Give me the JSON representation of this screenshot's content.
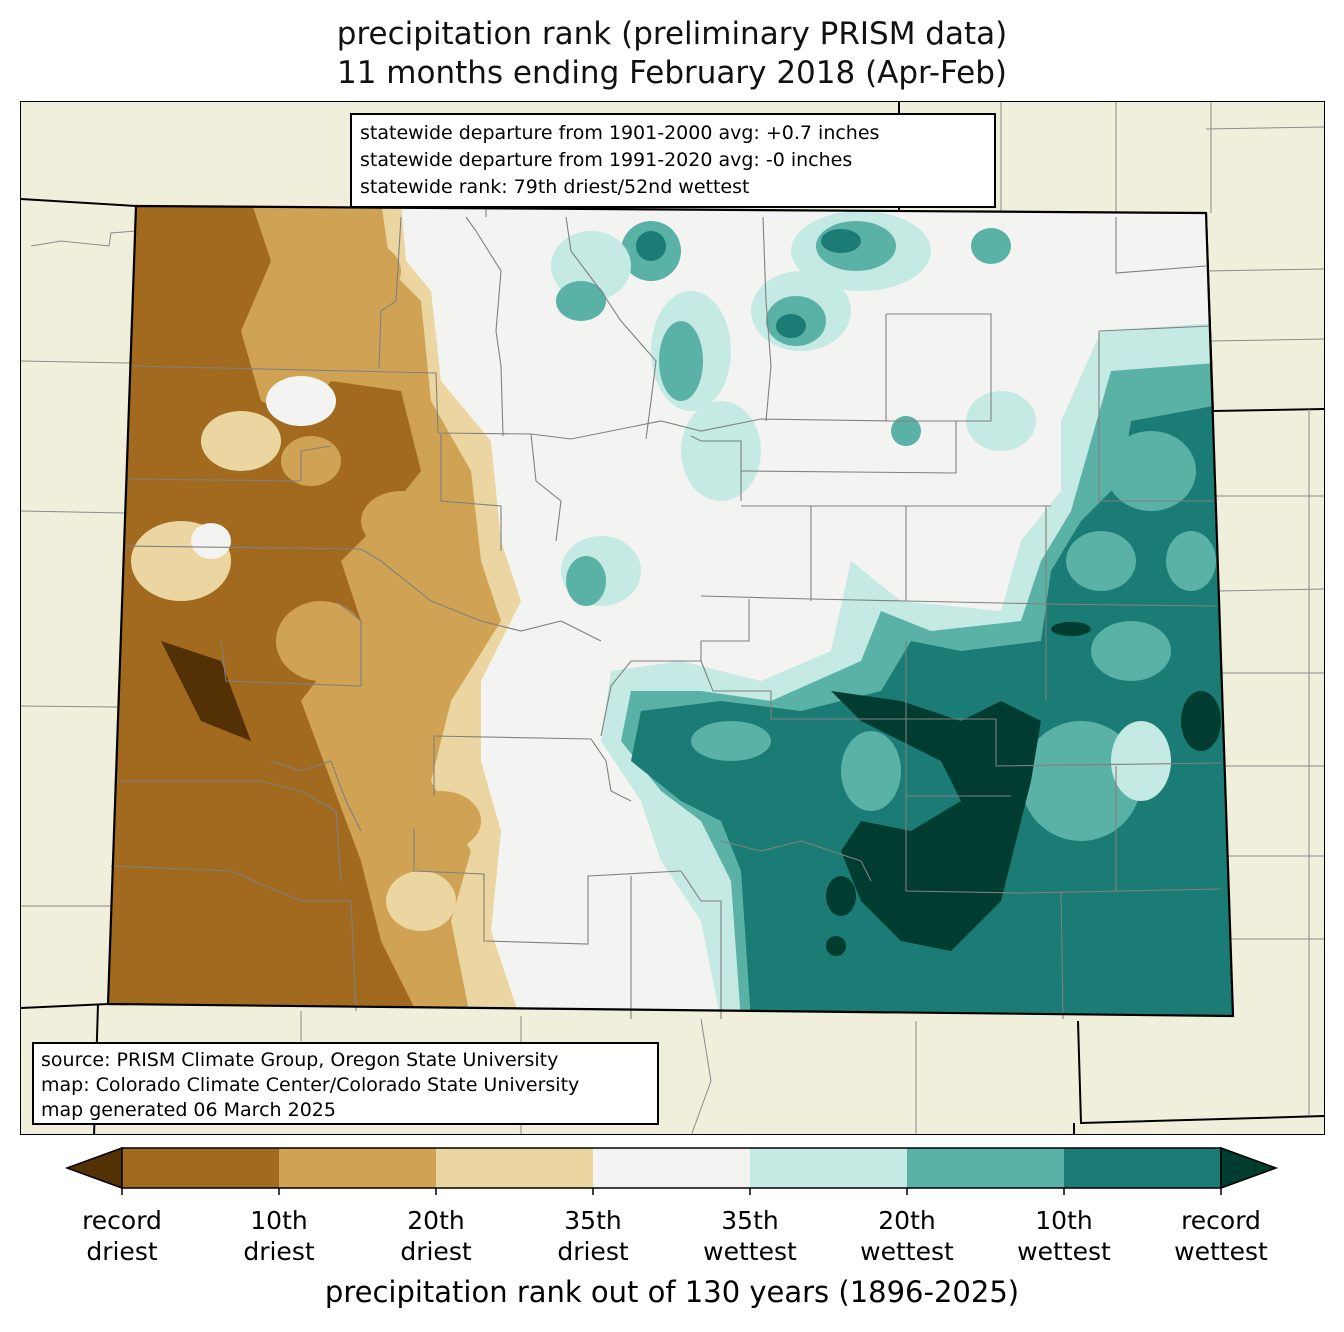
{
  "title": {
    "line1": "precipitation rank (preliminary PRISM data)",
    "line2": "11 months ending February 2018 (Apr-Feb)"
  },
  "stats_box": {
    "lines": [
      "statewide departure from 1901-2000 avg: +0.7 inches",
      "statewide departure from 1991-2020 avg: -0 inches",
      "statewide rank: 79th driest/52nd wettest"
    ]
  },
  "source_box": {
    "lines": [
      "source: PRISM Climate Group, Oregon State University",
      "map: Colorado Climate Center/Colorado State University",
      "map generated 06 March 2025"
    ]
  },
  "legend": {
    "classes": [
      {
        "range": "record driest (extension)",
        "color": "#543005"
      },
      {
        "range": "record driest - 10th driest",
        "color": "#a16a1f"
      },
      {
        "range": "10th driest - 20th driest",
        "color": "#d0a253"
      },
      {
        "range": "20th driest - 35th driest",
        "color": "#ebd5a0"
      },
      {
        "range": "35th driest - 35th wettest",
        "color": "#f3f4f2"
      },
      {
        "range": "35th wettest - 20th wettest",
        "color": "#c5e9e3"
      },
      {
        "range": "20th wettest - 10th wettest",
        "color": "#5ab1a6"
      },
      {
        "range": "10th wettest - record wettest",
        "color": "#1a7c74"
      },
      {
        "range": "record wettest (extension)",
        "color": "#003c30"
      }
    ],
    "ticks": [
      {
        "line1": "record",
        "line2": "driest"
      },
      {
        "line1": "10th",
        "line2": "driest"
      },
      {
        "line1": "20th",
        "line2": "driest"
      },
      {
        "line1": "35th",
        "line2": "driest"
      },
      {
        "line1": "35th",
        "line2": "wettest"
      },
      {
        "line1": "20th",
        "line2": "wettest"
      },
      {
        "line1": "10th",
        "line2": "wettest"
      },
      {
        "line1": "record",
        "line2": "wettest"
      }
    ],
    "axis_label": "precipitation rank out of 130 years (1896-2025)"
  },
  "map_colors": {
    "background": "#f0efdc",
    "state_border": "#000000",
    "county_border": "#808080"
  }
}
